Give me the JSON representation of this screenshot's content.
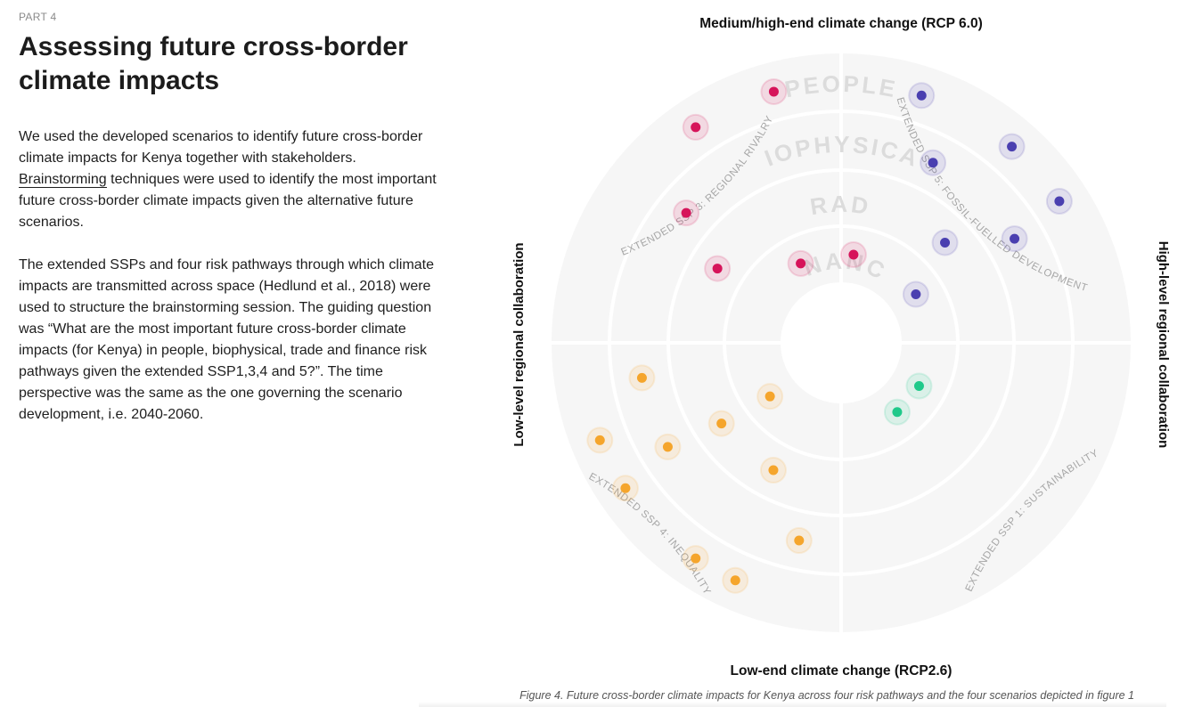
{
  "article": {
    "kicker": "PART 4",
    "title_line1": "Assessing future cross-border",
    "title_line2": "climate impacts",
    "p1_before": "We used the developed scenarios to identify future cross-border climate impacts for Kenya together with stakeholders. ",
    "p1_link": "Brainstorming",
    "p1_after": " techniques were used to identify the most important future cross-border climate impacts given the alternative future scenarios.",
    "p2": "The extended SSPs and four risk pathways through which climate impacts are transmitted across space (Hedlund et al., 2018) were used to structure the brainstorming session. The guiding question was “What are the most important future cross-border climate impacts (for Kenya) in people, biophysical, trade and finance risk pathways given the extended SSP1,3,4 and 5?”. The time perspective was the same as the one governing the scenario development, i.e. 2040-2060."
  },
  "chart_data": {
    "type": "radial-quadrant-scatter",
    "axes": {
      "top": "Medium/high-end climate change (RCP 6.0)",
      "bottom": "Low-end climate change (RCP2.6)",
      "left": "Low-level regional collaboration",
      "right": "High-level regional collaboration"
    },
    "rings": [
      "PEOPLE",
      "BIOPHYSICAL",
      "TRADE",
      "FINANCE"
    ],
    "quadrants": [
      {
        "label": "EXTENDED SSP 3: REGIONAL RIVALRY",
        "position": "top-left",
        "color": "#d6145a"
      },
      {
        "label": "EXTENDED SSP 5: FOSSIL-FUELLED DEVELOPMENT",
        "position": "top-right",
        "color": "#4a3fb0"
      },
      {
        "label": "EXTENDED SSP 4: INEQUALITY",
        "position": "bottom-left",
        "color": "#f5a52c"
      },
      {
        "label": "EXTENDED SSP 1: SUSTAINABILITY",
        "position": "bottom-right",
        "color": "#1fc98a"
      }
    ],
    "points": [
      {
        "quadrant": 0,
        "ring": "PEOPLE",
        "angle_deg": 105
      },
      {
        "quadrant": 0,
        "ring": "PEOPLE",
        "angle_deg": 124
      },
      {
        "quadrant": 0,
        "ring": "BIOPHYSICAL",
        "angle_deg": 140
      },
      {
        "quadrant": 0,
        "ring": "TRADE",
        "angle_deg": 149
      },
      {
        "quadrant": 0,
        "ring": "FINANCE",
        "angle_deg": 117
      },
      {
        "quadrant": 0,
        "ring": "FINANCE",
        "angle_deg": 82
      },
      {
        "quadrant": 1,
        "ring": "PEOPLE",
        "angle_deg": 72
      },
      {
        "quadrant": 1,
        "ring": "PEOPLE",
        "angle_deg": 49
      },
      {
        "quadrant": 1,
        "ring": "PEOPLE",
        "angle_deg": 33
      },
      {
        "quadrant": 1,
        "ring": "BIOPHYSICAL",
        "angle_deg": 63
      },
      {
        "quadrant": 1,
        "ring": "BIOPHYSICAL",
        "angle_deg": 31
      },
      {
        "quadrant": 1,
        "ring": "TRADE",
        "angle_deg": 44
      },
      {
        "quadrant": 1,
        "ring": "FINANCE",
        "angle_deg": 33
      },
      {
        "quadrant": 2,
        "ring": "PEOPLE",
        "angle_deg": 202
      },
      {
        "quadrant": 2,
        "ring": "PEOPLE",
        "angle_deg": 214
      },
      {
        "quadrant": 2,
        "ring": "PEOPLE",
        "angle_deg": 236
      },
      {
        "quadrant": 2,
        "ring": "BIOPHYSICAL",
        "angle_deg": 190
      },
      {
        "quadrant": 2,
        "ring": "BIOPHYSICAL",
        "angle_deg": 211
      },
      {
        "quadrant": 2,
        "ring": "BIOPHYSICAL",
        "angle_deg": 258
      },
      {
        "quadrant": 2,
        "ring": "TRADE",
        "angle_deg": 214
      },
      {
        "quadrant": 2,
        "ring": "TRADE",
        "angle_deg": 242
      },
      {
        "quadrant": 2,
        "ring": "PEOPLE",
        "angle_deg": 246
      },
      {
        "quadrant": 2,
        "ring": "FINANCE",
        "angle_deg": 217
      },
      {
        "quadrant": 3,
        "ring": "FINANCE",
        "angle_deg": 331
      },
      {
        "quadrant": 3,
        "ring": "FINANCE",
        "angle_deg": 309
      }
    ],
    "caption": "Figure 4. Future cross-border climate impacts for Kenya across four risk pathways and the four scenarios depicted in figure 1"
  }
}
